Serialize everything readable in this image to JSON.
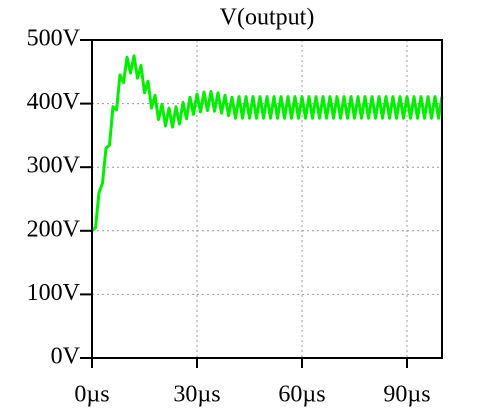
{
  "chart_data": {
    "type": "line",
    "title": "V(output)",
    "color": "#00f000",
    "x": [
      0,
      1,
      2,
      3,
      4,
      5,
      6,
      7,
      8,
      9,
      10,
      11,
      12,
      13,
      14,
      15,
      16,
      17,
      18,
      19,
      20,
      21,
      22,
      23,
      24,
      25,
      26,
      27,
      28,
      29,
      30,
      31,
      32,
      33,
      34,
      35,
      36,
      37,
      38,
      39,
      40,
      41,
      42,
      43,
      44,
      45,
      46,
      47,
      48,
      49,
      50,
      51,
      52,
      53,
      54,
      55,
      56,
      57,
      58,
      59,
      60,
      61,
      62,
      63,
      64,
      65,
      66,
      67,
      68,
      69,
      70,
      71,
      72,
      73,
      74,
      75,
      76,
      77,
      78,
      79,
      80,
      81,
      82,
      83,
      84,
      85,
      86,
      87,
      88,
      89,
      90,
      91,
      92,
      93,
      94,
      95,
      96,
      97,
      98,
      99,
      100
    ],
    "values": [
      200,
      205,
      260,
      275,
      330,
      335,
      395,
      390,
      445,
      433,
      473,
      448,
      475,
      440,
      460,
      417,
      435,
      393,
      413,
      375,
      399,
      365,
      393,
      363,
      395,
      368,
      402,
      376,
      410,
      383,
      415,
      387,
      418,
      389,
      419,
      388,
      417,
      385,
      413,
      381,
      410,
      377,
      411,
      377,
      411,
      377,
      411,
      377,
      411,
      377,
      411,
      377,
      411,
      377,
      411,
      377,
      411,
      377,
      411,
      377,
      411,
      377,
      411,
      377,
      411,
      377,
      411,
      377,
      411,
      377,
      411,
      377,
      411,
      377,
      411,
      377,
      411,
      377,
      411,
      377,
      411,
      377,
      411,
      377,
      411,
      377,
      411,
      377,
      411,
      377,
      411,
      377,
      411,
      377,
      411,
      377,
      411,
      377,
      411,
      377,
      411
    ],
    "xlim": [
      0,
      100
    ],
    "xticks": [
      {
        "value": 0,
        "label": "0µs"
      },
      {
        "value": 30,
        "label": "30µs"
      },
      {
        "value": 60,
        "label": "60µs"
      },
      {
        "value": 90,
        "label": "90µs"
      }
    ],
    "ylim": [
      0,
      500
    ],
    "yticks": [
      {
        "value": 0,
        "label": "0V"
      },
      {
        "value": 100,
        "label": "100V"
      },
      {
        "value": 200,
        "label": "200V"
      },
      {
        "value": 300,
        "label": "300V"
      },
      {
        "value": 400,
        "label": "400V"
      },
      {
        "value": 500,
        "label": "500V"
      }
    ],
    "grid": true
  }
}
